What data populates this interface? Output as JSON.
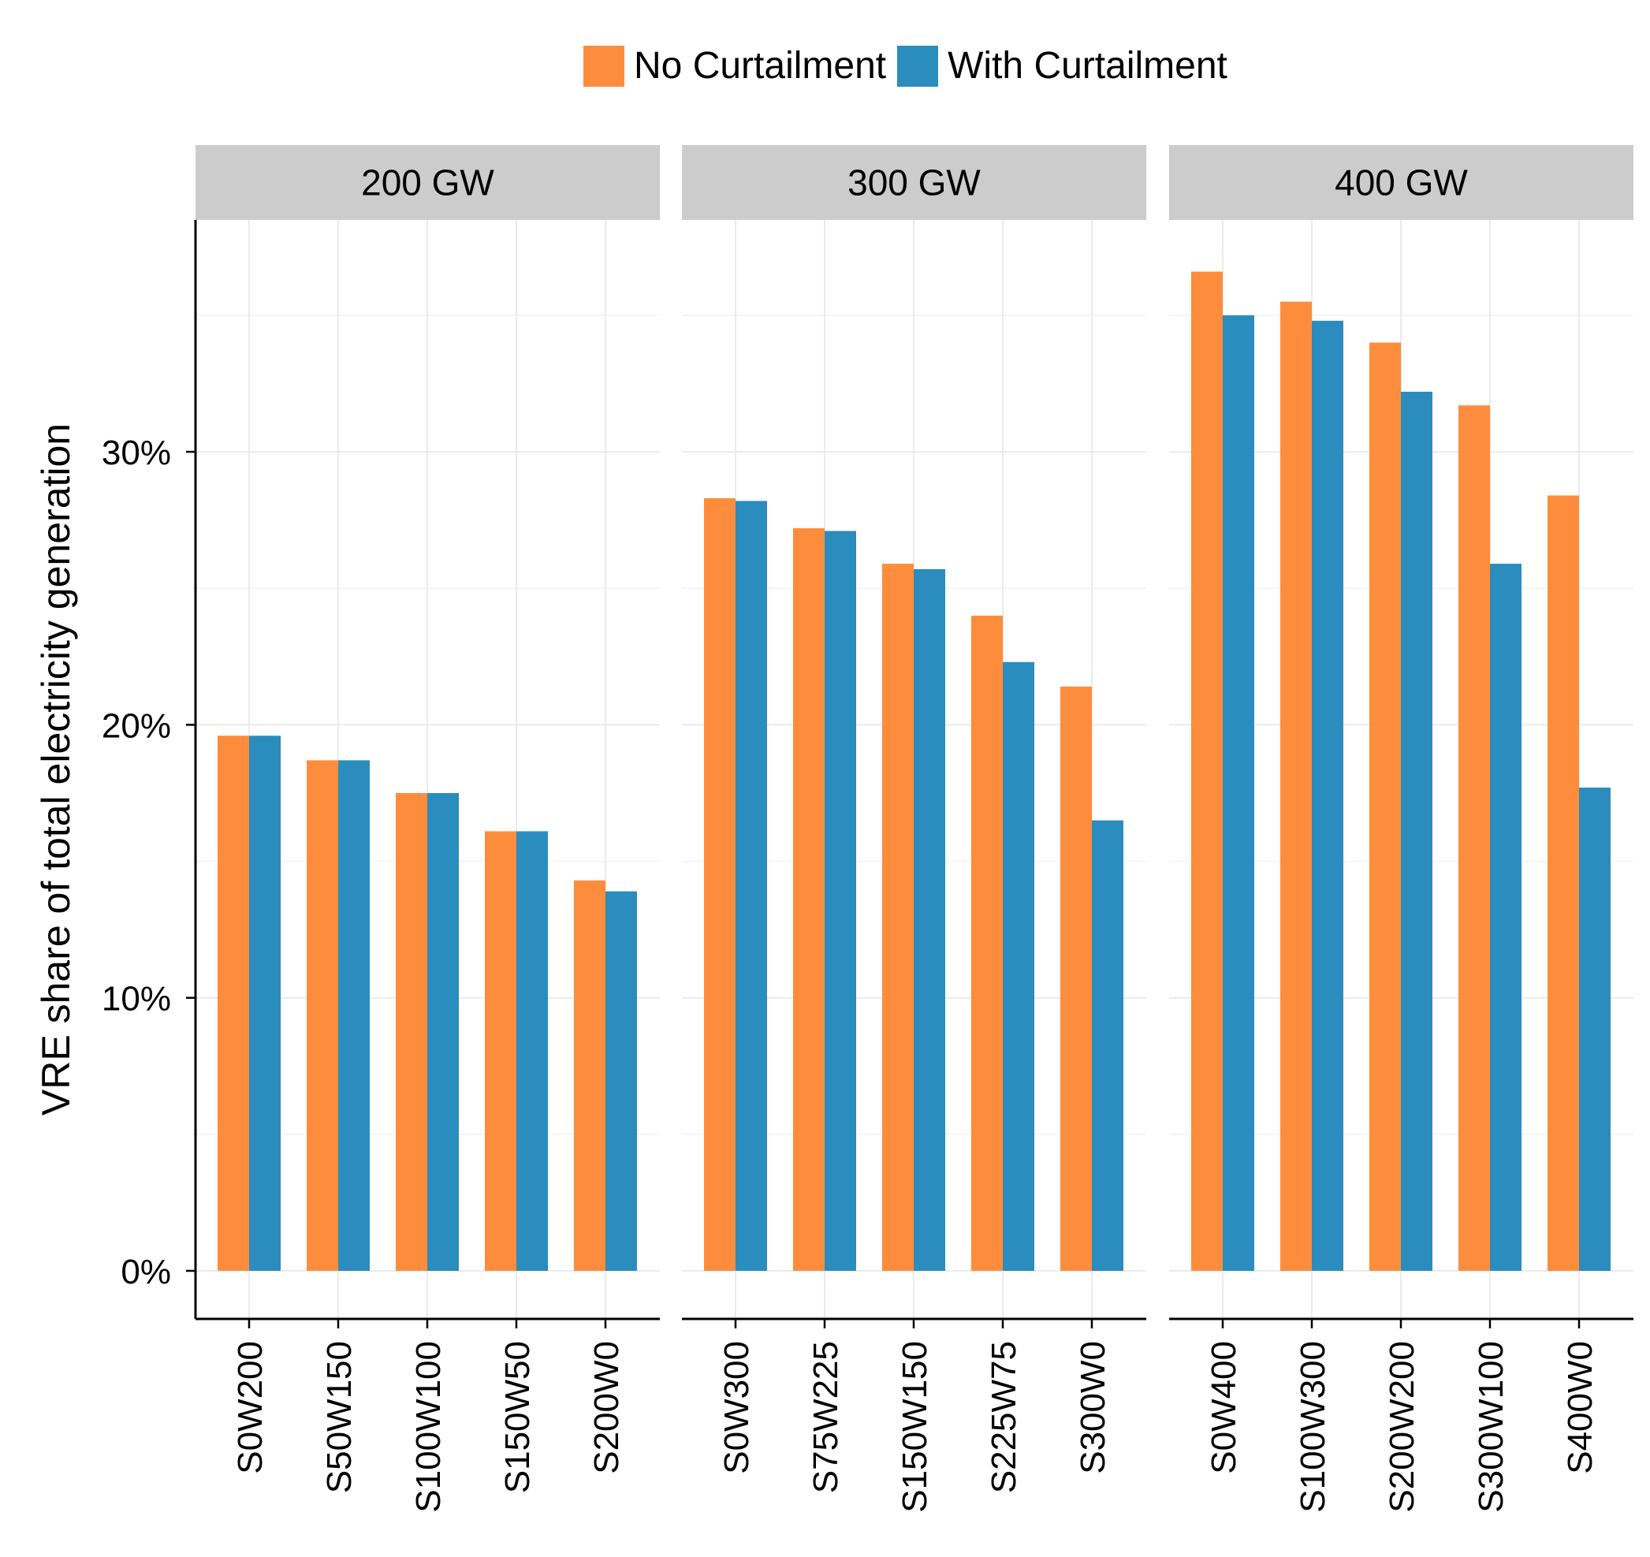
{
  "chart_data": {
    "type": "bar",
    "ylabel": "VRE share of total electricity generation",
    "xlabel": "",
    "ylim": [
      0,
      36.5
    ],
    "yticks": [
      0,
      10,
      20,
      30
    ],
    "ytick_labels": [
      "0%",
      "10%",
      "20%",
      "30%"
    ],
    "grid": true,
    "legend_position": "top-center",
    "series": [
      {
        "name": "No Curtailment",
        "color": "#fd8d3c"
      },
      {
        "name": "With Curtailment",
        "color": "#2b8cbe"
      }
    ],
    "panels": [
      {
        "title": "200 GW",
        "categories": [
          "S0W200",
          "S50W150",
          "S100W100",
          "S150W50",
          "S200W0"
        ],
        "no_curtailment": [
          19.6,
          18.7,
          17.5,
          16.1,
          14.3
        ],
        "with_curtailment": [
          19.6,
          18.7,
          17.5,
          16.1,
          13.9
        ]
      },
      {
        "title": "300 GW",
        "categories": [
          "S0W300",
          "S75W225",
          "S150W150",
          "S225W75",
          "S300W0"
        ],
        "no_curtailment": [
          28.3,
          27.2,
          25.9,
          24.0,
          21.4
        ],
        "with_curtailment": [
          28.2,
          27.1,
          25.7,
          22.3,
          16.5
        ]
      },
      {
        "title": "400 GW",
        "categories": [
          "S0W400",
          "S100W300",
          "S200W200",
          "S300W100",
          "S400W0"
        ],
        "no_curtailment": [
          36.6,
          35.5,
          34.0,
          31.7,
          28.4
        ],
        "with_curtailment": [
          35.0,
          34.8,
          32.2,
          25.9,
          17.7
        ]
      }
    ]
  }
}
